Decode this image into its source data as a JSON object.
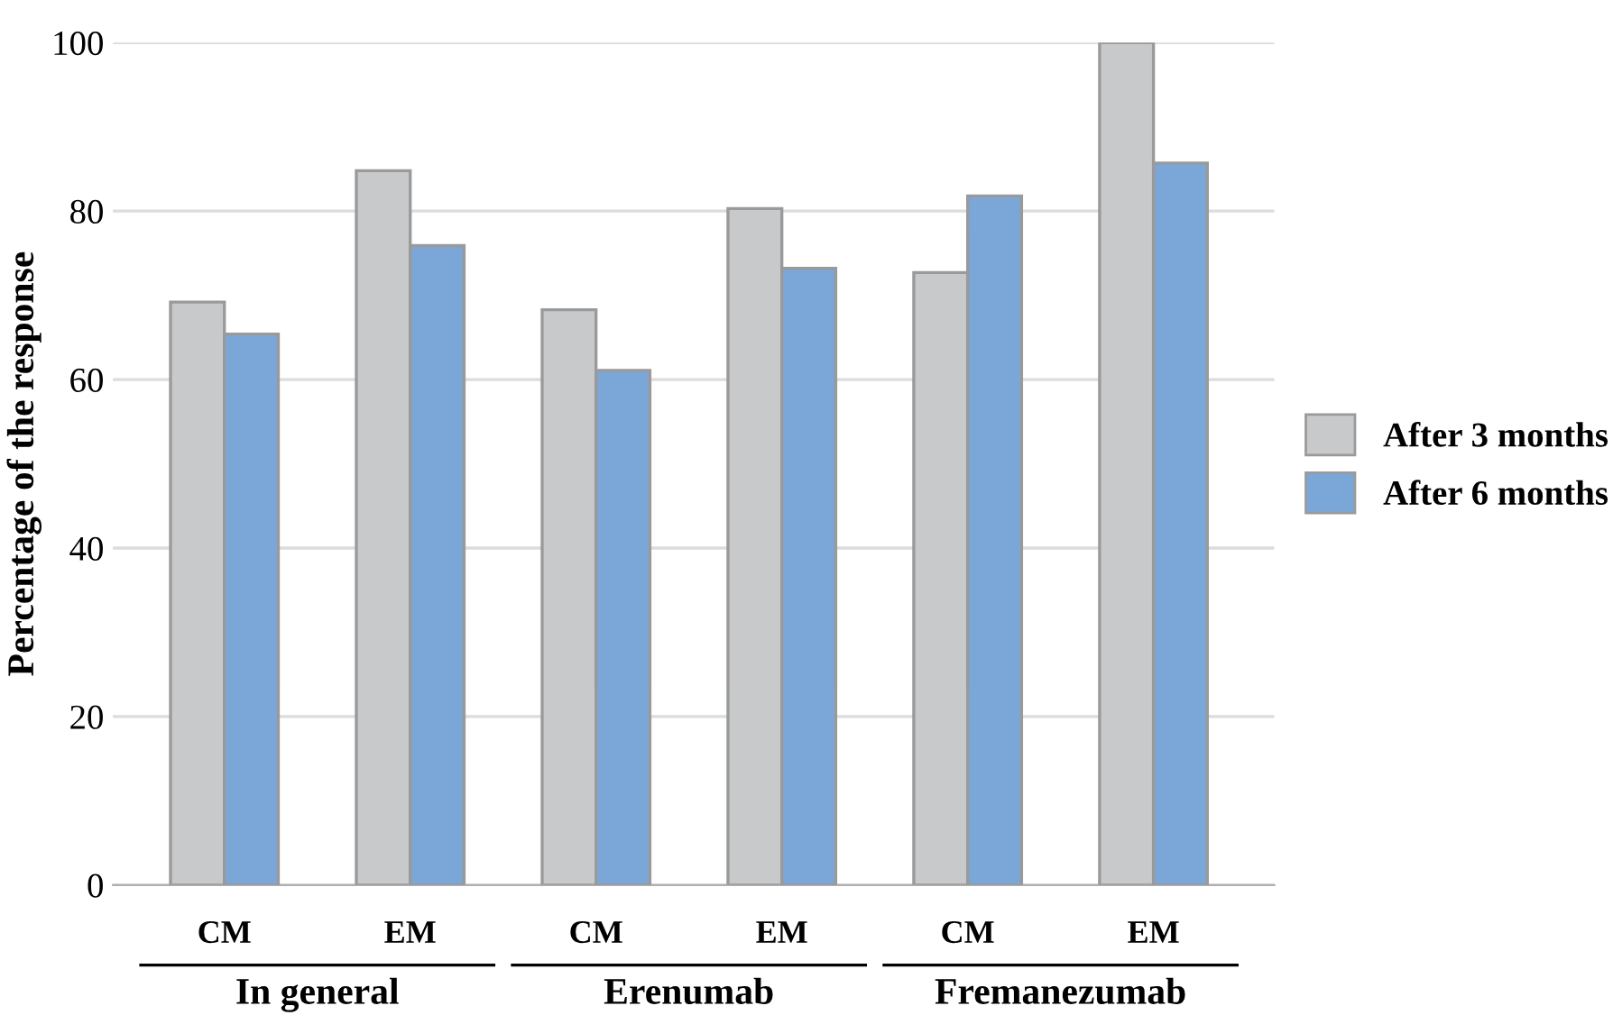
{
  "chart_data": {
    "type": "bar",
    "ylabel": "Percentage of the response",
    "categories": [
      "CM",
      "EM",
      "CM",
      "EM",
      "CM",
      "EM"
    ],
    "series": [
      {
        "name": "After 3 months",
        "color": "#c8c9cb",
        "values": [
          69.2,
          84.8,
          68.3,
          80.3,
          72.7,
          100
        ]
      },
      {
        "name": "After 6 months",
        "color": "#7ba7d8",
        "values": [
          65.4,
          75.9,
          61.1,
          73.2,
          81.8,
          85.7
        ]
      }
    ],
    "annotations": [
      "In general",
      "Erenumab",
      "Fremanezumab"
    ],
    "ylim": [
      0,
      100
    ],
    "yticks": [
      0,
      20,
      40,
      60,
      80,
      100
    ],
    "grid": "y",
    "legend": "right"
  }
}
